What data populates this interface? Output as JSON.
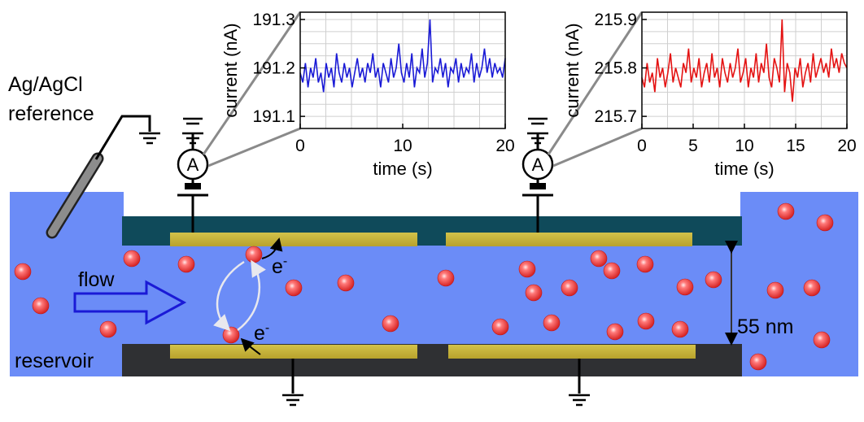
{
  "labels": {
    "reference_line1": "Ag/AgCl",
    "reference_line2": "reference",
    "flow": "flow",
    "reservoir": "reservoir",
    "gap": "55 nm",
    "electron": "e",
    "electron_sup": "-",
    "ammeter": "A"
  },
  "colors": {
    "channel": "#6b8cf7",
    "top_wall": "#0f4a5a",
    "bottom_wall": "#2f3033",
    "electrode": "#c9b53a",
    "particle": "#f04a4a",
    "trace_left": "#1a1ad6",
    "trace_right": "#e41212"
  },
  "chart_data": [
    {
      "type": "line",
      "title": "",
      "xlabel": "time (s)",
      "ylabel": "current (nA)",
      "xlim": [
        0,
        20
      ],
      "ylim": [
        191.075,
        191.315
      ],
      "xticks": [
        "0",
        "10",
        "20"
      ],
      "yticks": [
        "191.1",
        "191.2",
        "191.3"
      ],
      "grid": true,
      "series": [
        {
          "values": [
            191.19,
            191.17,
            191.21,
            191.16,
            191.2,
            191.18,
            191.22,
            191.17,
            191.19,
            191.15,
            191.21,
            191.18,
            191.2,
            191.16,
            191.23,
            191.19,
            191.17,
            191.21,
            191.18,
            191.2,
            191.16,
            191.19,
            191.22,
            191.18,
            191.2,
            191.17,
            191.21,
            191.19,
            191.23,
            191.18,
            191.2,
            191.16,
            191.21,
            191.19,
            191.17,
            191.22,
            191.18,
            191.2,
            191.25,
            191.19,
            191.17,
            191.21,
            191.18,
            191.23,
            191.16,
            191.2,
            191.19,
            191.24,
            191.18,
            191.21,
            191.3,
            191.17,
            191.2,
            191.19,
            191.22,
            191.18,
            191.21,
            191.16,
            191.2,
            191.19,
            191.22,
            191.17,
            191.21,
            191.18,
            191.2,
            191.19,
            191.23,
            191.17,
            191.21,
            191.18,
            191.2,
            191.24,
            191.19,
            191.22,
            191.18,
            191.21,
            191.19,
            191.2,
            191.18,
            191.22
          ]
        }
      ]
    },
    {
      "type": "line",
      "title": "",
      "xlabel": "time (s)",
      "ylabel": "current (nA)",
      "xlim": [
        0,
        20
      ],
      "ylim": [
        215.675,
        215.915
      ],
      "xticks": [
        "0",
        "5",
        "10",
        "15",
        "20"
      ],
      "yticks": [
        "215.7",
        "215.8",
        "215.9"
      ],
      "grid": true,
      "series": [
        {
          "values": [
            215.78,
            215.76,
            215.81,
            215.77,
            215.79,
            215.75,
            215.82,
            215.78,
            215.8,
            215.76,
            215.79,
            215.83,
            215.77,
            215.8,
            215.78,
            215.76,
            215.81,
            215.79,
            215.84,
            215.77,
            215.8,
            215.78,
            215.82,
            215.76,
            215.79,
            215.81,
            215.77,
            215.83,
            215.78,
            215.8,
            215.76,
            215.82,
            215.79,
            215.77,
            215.81,
            215.78,
            215.8,
            215.84,
            215.77,
            215.79,
            215.82,
            215.76,
            215.8,
            215.78,
            215.83,
            215.77,
            215.81,
            215.79,
            215.85,
            215.78,
            215.76,
            215.82,
            215.8,
            215.77,
            215.9,
            215.75,
            215.81,
            215.79,
            215.73,
            215.8,
            215.78,
            215.82,
            215.76,
            215.79,
            215.81,
            215.77,
            215.83,
            215.78,
            215.8,
            215.82,
            215.79,
            215.81,
            215.78,
            215.84,
            215.8,
            215.82,
            215.79,
            215.83,
            215.81,
            215.8
          ]
        }
      ]
    }
  ]
}
